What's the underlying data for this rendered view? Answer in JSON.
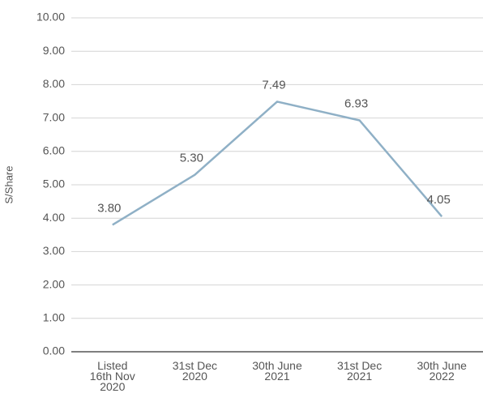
{
  "chart_data": {
    "type": "line",
    "y_label": "S/Share",
    "categories": [
      [
        "Listed",
        "16th Nov",
        "2020"
      ],
      [
        "31st Dec",
        "2020"
      ],
      [
        "30th June",
        "2021"
      ],
      [
        "31st Dec",
        "2021"
      ],
      [
        "30th June",
        "2022"
      ]
    ],
    "series": [
      {
        "color": "#8fb0c6",
        "values": [
          3.8,
          5.3,
          7.49,
          6.93,
          4.05
        ],
        "value_labels": [
          "3.80",
          "5.30",
          "7.49",
          "6.93",
          "4.05"
        ]
      }
    ],
    "ylim": [
      0,
      10
    ],
    "yticks": [
      {
        "value": 0,
        "label": "0.00"
      },
      {
        "value": 1,
        "label": "1.00"
      },
      {
        "value": 2,
        "label": "2.00"
      },
      {
        "value": 3,
        "label": "3.00"
      },
      {
        "value": 4,
        "label": "4.00"
      },
      {
        "value": 5,
        "label": "5.00"
      },
      {
        "value": 6,
        "label": "6.00"
      },
      {
        "value": 7,
        "label": "7.00"
      },
      {
        "value": 8,
        "label": "8.00"
      },
      {
        "value": 9,
        "label": "9.00"
      },
      {
        "value": 10,
        "label": "10.00"
      }
    ],
    "grid": true
  }
}
